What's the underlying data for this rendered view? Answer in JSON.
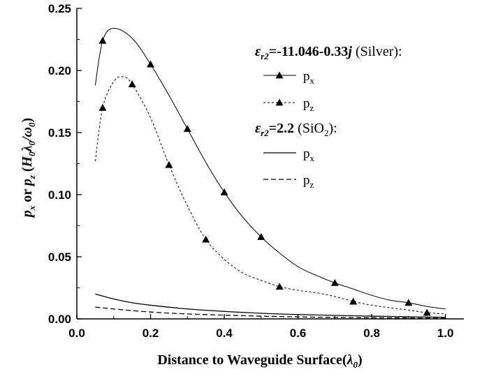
{
  "chart_data": {
    "type": "line",
    "xlabel": "Distance to Waveguide Surface(λ0)",
    "xlabel_main": "Distance to Waveguide Surface(",
    "xlabel_var": "λ",
    "xlabel_sub": "0",
    "xlabel_close": ")",
    "ylabel": "px or pz (H0λ0/ω0)",
    "xlim": [
      0.0,
      1.05
    ],
    "ylim": [
      0.0,
      0.25
    ],
    "x_ticks": [
      0.0,
      0.2,
      0.4,
      0.6,
      0.8,
      1.0
    ],
    "x_tick_labels": [
      "0.0",
      "0.2",
      "0.4",
      "0.6",
      "0.8",
      "1.0"
    ],
    "y_ticks": [
      0.0,
      0.05,
      0.1,
      0.15,
      0.2,
      0.25
    ],
    "y_tick_labels": [
      "0.00",
      "0.05",
      "0.10",
      "0.15",
      "0.20",
      "0.25"
    ],
    "grid": false,
    "legend": {
      "placement": "top-right",
      "group1_title_math": "εr2=-11.046-0.33j",
      "group1_title_text": "(Silver):",
      "group2_title_math": "εr2=2.2",
      "group2_title_text_a": "(SiO",
      "group2_title_sub": "2",
      "group2_title_text_b": "):",
      "entry_px_main": "p",
      "entry_px_sub": "x",
      "entry_pz_main": "p",
      "entry_pz_sub": "z"
    },
    "series": [
      {
        "name": "px",
        "group": "Silver",
        "style": "solid",
        "markers": "triangle",
        "x": [
          0.05,
          0.07,
          0.1,
          0.15,
          0.2,
          0.25,
          0.3,
          0.35,
          0.4,
          0.45,
          0.5,
          0.55,
          0.6,
          0.65,
          0.7,
          0.75,
          0.8,
          0.85,
          0.9,
          0.95,
          1.0
        ],
        "y": [
          0.188,
          0.224,
          0.234,
          0.226,
          0.205,
          0.18,
          0.153,
          0.126,
          0.102,
          0.082,
          0.066,
          0.053,
          0.042,
          0.035,
          0.029,
          0.024,
          0.019,
          0.015,
          0.013,
          0.01,
          0.008
        ],
        "marker_x": [
          0.07,
          0.2,
          0.3,
          0.4,
          0.5,
          0.7,
          0.9
        ],
        "marker_y": [
          0.224,
          0.205,
          0.153,
          0.102,
          0.066,
          0.029,
          0.013
        ]
      },
      {
        "name": "pz",
        "group": "Silver",
        "style": "dashed",
        "markers": "triangle",
        "x": [
          0.05,
          0.07,
          0.1,
          0.125,
          0.15,
          0.2,
          0.25,
          0.3,
          0.35,
          0.4,
          0.45,
          0.5,
          0.55,
          0.6,
          0.65,
          0.7,
          0.75,
          0.8,
          0.85,
          0.9,
          0.95,
          1.0
        ],
        "y": [
          0.127,
          0.17,
          0.191,
          0.195,
          0.189,
          0.162,
          0.124,
          0.091,
          0.064,
          0.048,
          0.037,
          0.031,
          0.026,
          0.023,
          0.021,
          0.018,
          0.014,
          0.011,
          0.009,
          0.007,
          0.005,
          0.004
        ],
        "marker_x": [
          0.07,
          0.15,
          0.25,
          0.35,
          0.55,
          0.75,
          0.95
        ],
        "marker_y": [
          0.17,
          0.189,
          0.124,
          0.064,
          0.026,
          0.014,
          0.005
        ]
      },
      {
        "name": "px",
        "group": "SiO2",
        "style": "solid",
        "markers": "none",
        "x": [
          0.05,
          0.1,
          0.15,
          0.2,
          0.3,
          0.4,
          0.5,
          0.6,
          0.7,
          0.8,
          0.9,
          1.0
        ],
        "y": [
          0.02,
          0.016,
          0.013,
          0.011,
          0.008,
          0.006,
          0.0045,
          0.0035,
          0.0028,
          0.0022,
          0.0017,
          0.0013
        ]
      },
      {
        "name": "pz",
        "group": "SiO2",
        "style": "dashed",
        "markers": "none",
        "x": [
          0.05,
          0.1,
          0.2,
          0.3,
          0.4,
          0.5,
          0.6,
          0.7,
          0.8,
          0.9,
          1.0
        ],
        "y": [
          0.0095,
          0.008,
          0.0055,
          0.004,
          0.003,
          0.0022,
          0.0016,
          0.0012,
          0.0009,
          0.0007,
          0.0005
        ]
      }
    ]
  }
}
